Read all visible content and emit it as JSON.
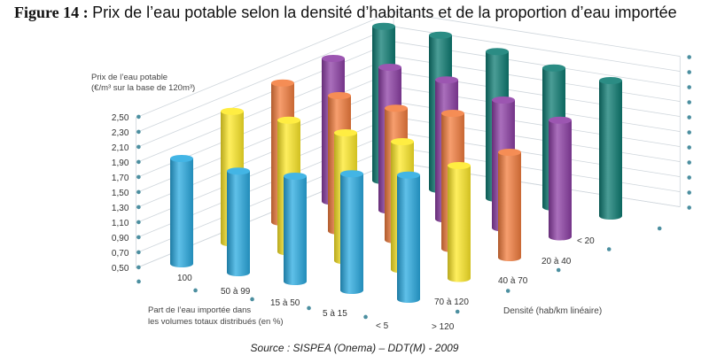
{
  "figure": {
    "label": "Figure 14 :",
    "title": "Prix de l’eau potable selon la densité d’habitants et de la proportion d’eau importée",
    "source": "Source : SISPEA (Onema) – DDT(M) - 2009"
  },
  "chart_data": {
    "type": "bar3d",
    "title": "Prix de l’eau potable selon la densité d’habitants et de la proportion d’eau importée",
    "ylabel": [
      "Prix de l’eau potable",
      "(€/m³ sur la base de 120m³)"
    ],
    "yticks": [
      "2,50",
      "2,30",
      "2,10",
      "1,90",
      "1,70",
      "1,50",
      "1,30",
      "1,10",
      "0,90",
      "0,70",
      "0,50"
    ],
    "ylim": [
      0.5,
      2.5
    ],
    "xlabel": [
      "Part de l’eau importée dans",
      "les volumes totaux distribués (en %)"
    ],
    "x_categories": [
      "100",
      "50 à 99",
      "15 à 50",
      "5 à 15",
      "< 5"
    ],
    "zlabel": "Densité (hab/km linéaire)",
    "z_categories": [
      "> 120",
      "70 à 120",
      "40 à 70",
      "20 à 40",
      "< 20"
    ],
    "series": [
      {
        "name": "> 120",
        "color": "#29ABE2",
        "values": [
          1.9,
          1.85,
          1.9,
          2.05,
          2.15
        ]
      },
      {
        "name": "70 à 120",
        "color": "#FFEA28",
        "values": [
          2.25,
          2.25,
          2.2,
          2.2,
          2.0
        ]
      },
      {
        "name": "40 à 70",
        "color": "#F47E3E",
        "values": [
          2.35,
          2.3,
          2.25,
          2.3,
          1.9
        ]
      },
      {
        "name": "20 à 40",
        "color": "#8E3FA6",
        "values": [
          2.4,
          2.4,
          2.35,
          2.2,
          2.05
        ]
      },
      {
        "name": "< 20",
        "color": "#0E7C73",
        "values": [
          2.55,
          2.55,
          2.45,
          2.35,
          2.3
        ]
      }
    ]
  }
}
